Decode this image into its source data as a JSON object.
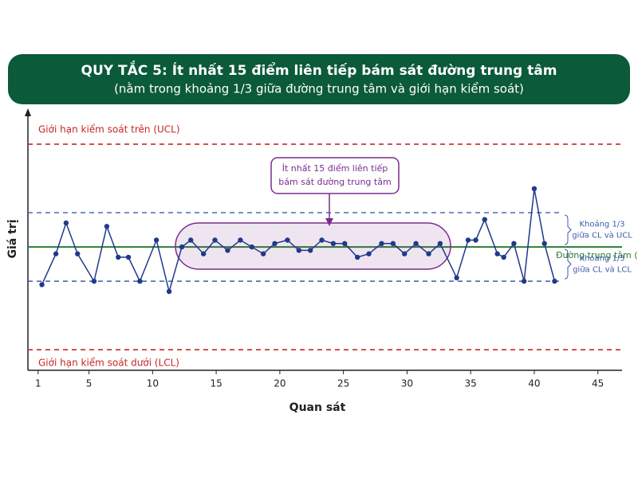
{
  "chart_data": {
    "type": "line",
    "title": "QUY TẮC 5: Ít nhất 15 điểm liên tiếp bám sát đường trung tâm",
    "subtitle": "(nằm trong khoảng 1/3 giữa đường trung tâm và giới hạn kiểm soát)",
    "x_label": "Quan sát",
    "y_label": "Giá trị",
    "x": [
      1.3,
      2.4,
      3.2,
      4.1,
      5.4,
      6.4,
      7.3,
      8.1,
      9.0,
      10.3,
      11.3,
      12.3,
      13.0,
      14.0,
      14.9,
      15.9,
      16.9,
      17.8,
      18.7,
      19.6,
      20.6,
      21.5,
      22.4,
      23.3,
      24.2,
      25.1,
      26.1,
      27.0,
      28.0,
      28.9,
      29.8,
      30.7,
      31.7,
      32.6,
      33.9,
      34.8,
      35.4,
      36.1,
      37.1,
      37.6,
      38.4,
      39.2,
      40.0,
      40.8,
      41.6
    ],
    "values": [
      -1.1,
      -0.2,
      0.7,
      -0.2,
      -1.0,
      0.6,
      -0.3,
      -0.3,
      -1.0,
      0.2,
      -1.3,
      0.0,
      0.2,
      -0.2,
      0.2,
      -0.1,
      0.2,
      0.0,
      -0.2,
      0.1,
      0.2,
      -0.1,
      -0.1,
      0.2,
      0.1,
      0.1,
      -0.3,
      -0.2,
      0.1,
      0.1,
      -0.2,
      0.1,
      -0.2,
      0.1,
      -0.9,
      0.2,
      0.2,
      0.8,
      -0.2,
      -0.3,
      0.1,
      -1.0,
      1.7,
      0.1,
      -1.0
    ],
    "color": "#1f3a8a",
    "xlim": [
      0.2,
      46.9
    ],
    "xticks": [
      1,
      5,
      10,
      15,
      20,
      25,
      30,
      35,
      40,
      45
    ],
    "ylim": [
      -3.6,
      4
    ],
    "limit_lines": [
      {
        "name": "Giới hạn kiểm soát trên (UCL)",
        "value": 3,
        "color": "#c62828",
        "dashed": true
      },
      {
        "name": "Giới hạn kiểm soát dưới (LCL)",
        "value": -3,
        "color": "#c62828",
        "dashed": true
      },
      {
        "name": "Đường trung tâm (CL)",
        "value": 0,
        "color": "#2e7d32",
        "dashed": false
      }
    ],
    "zone_lines": [
      {
        "value": 1,
        "label": [
          "Khoảng 1/3",
          "giữa CL và UCL"
        ],
        "color": "#3b5ba9"
      },
      {
        "value": -1,
        "label": [
          "Khoảng 1/3",
          "giữa CL và LCL"
        ],
        "color": "#3b5ba9"
      }
    ],
    "annotation": [
      "Ít nhất 15 điểm liên tiếp",
      "bám sát đường trung tâm"
    ],
    "highlight_color": "#7b2d8e"
  }
}
